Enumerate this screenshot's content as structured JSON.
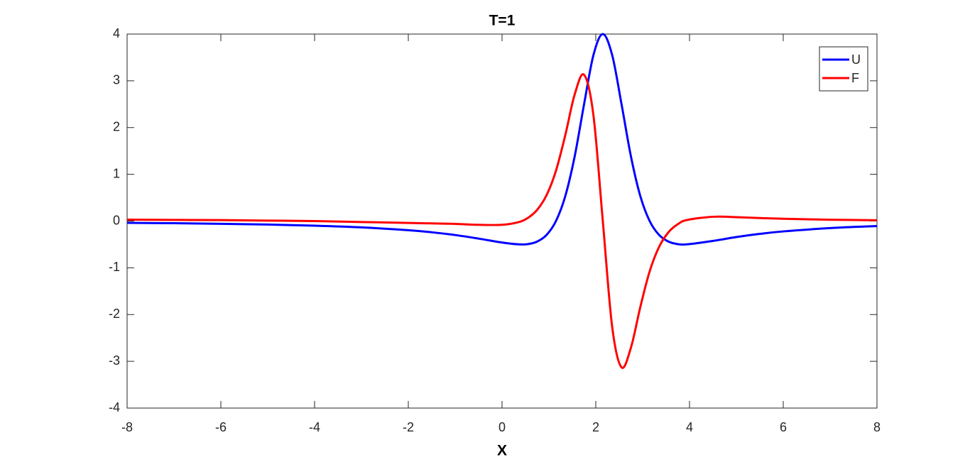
{
  "chart_data": {
    "type": "line",
    "title": "T=1",
    "x_label": "X",
    "x": [
      -8,
      -7,
      -6,
      -5,
      -4,
      -3,
      -2,
      -1.5,
      -1,
      -0.5,
      0,
      0.35,
      0.55,
      0.75,
      0.95,
      1.15,
      1.35,
      1.55,
      1.75,
      1.95,
      2.15,
      2.35,
      2.55,
      2.75,
      2.95,
      3.15,
      3.35,
      3.55,
      3.75,
      3.95,
      4.5,
      5,
      5.5,
      6,
      7,
      8
    ],
    "series": [
      {
        "name": "U",
        "color": "#0000ff",
        "values": [
          -0.038,
          -0.046,
          -0.058,
          -0.074,
          -0.098,
          -0.135,
          -0.196,
          -0.24,
          -0.299,
          -0.375,
          -0.459,
          -0.498,
          -0.493,
          -0.438,
          -0.296,
          0,
          0.535,
          1.384,
          2.497,
          3.55,
          4,
          3.55,
          2.497,
          1.384,
          0.535,
          0,
          -0.296,
          -0.438,
          -0.493,
          -0.498,
          -0.425,
          -0.342,
          -0.274,
          -0.221,
          -0.15,
          -0.107
        ]
      },
      {
        "name": "F",
        "color": "#ff0000",
        "values": [
          0.03,
          0.025,
          0.02,
          0.01,
          0,
          -0.02,
          -0.04,
          -0.05,
          -0.06,
          -0.08,
          -0.08,
          -0.024,
          0.067,
          0.241,
          0.554,
          1.075,
          1.84,
          2.708,
          3.129,
          2.263,
          0,
          -2.263,
          -3.129,
          -2.708,
          -1.84,
          -1.075,
          -0.554,
          -0.241,
          -0.067,
          0.024,
          0.092,
          0.083,
          0.065,
          0.049,
          0.029,
          0.018
        ]
      }
    ],
    "xlim": [
      -8,
      8
    ],
    "xticks": [
      -8,
      -6,
      -4,
      -2,
      0,
      2,
      4,
      6,
      8
    ],
    "ylim": [
      -4,
      4
    ],
    "yticks": [
      -4,
      -3,
      -2,
      -1,
      0,
      1,
      2,
      3,
      4
    ],
    "grid": false,
    "legend": "northeast"
  }
}
